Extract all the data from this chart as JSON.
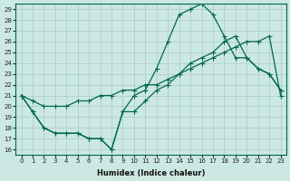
{
  "xlabel": "Humidex (Indice chaleur)",
  "background_color": "#cce8e2",
  "grid_color": "#a8ccbf",
  "line_color": "#006655",
  "xlim": [
    -0.5,
    23.5
  ],
  "ylim": [
    15.5,
    29.5
  ],
  "xticks": [
    0,
    1,
    2,
    3,
    4,
    5,
    6,
    7,
    8,
    9,
    10,
    11,
    12,
    13,
    14,
    15,
    16,
    17,
    18,
    19,
    20,
    21,
    22,
    23
  ],
  "yticks": [
    16,
    17,
    18,
    19,
    20,
    21,
    22,
    23,
    24,
    25,
    26,
    27,
    28,
    29
  ],
  "line1_x": [
    0,
    1,
    2,
    3,
    4,
    5,
    6,
    7,
    8,
    9,
    10,
    11,
    12,
    13,
    14,
    15,
    16,
    17,
    18,
    19,
    20,
    21,
    22,
    23
  ],
  "line1_y": [
    21.0,
    19.5,
    18.0,
    17.5,
    17.5,
    17.5,
    17.0,
    17.0,
    16.0,
    19.5,
    21.0,
    21.5,
    23.5,
    26.0,
    28.5,
    29.0,
    29.5,
    28.5,
    26.5,
    24.5,
    24.5,
    23.5,
    23.0,
    21.5
  ],
  "line2_x": [
    0,
    1,
    2,
    3,
    4,
    5,
    6,
    7,
    8,
    9,
    10,
    11,
    12,
    13,
    14,
    15,
    16,
    17,
    18,
    19,
    20,
    21,
    22,
    23
  ],
  "line2_y": [
    21.0,
    20.5,
    20.0,
    20.0,
    20.0,
    20.5,
    20.5,
    21.0,
    21.0,
    21.5,
    21.5,
    22.0,
    22.0,
    22.5,
    23.0,
    23.5,
    24.0,
    24.5,
    25.0,
    25.5,
    26.0,
    26.0,
    26.5,
    21.0
  ],
  "line3_x": [
    0,
    1,
    2,
    3,
    4,
    5,
    6,
    7,
    8,
    9,
    10,
    11,
    12,
    13,
    14,
    15,
    16,
    17,
    18,
    19,
    20,
    21,
    22,
    23
  ],
  "line3_y": [
    21.0,
    19.5,
    18.0,
    17.5,
    17.5,
    17.5,
    17.0,
    17.0,
    16.0,
    19.5,
    19.5,
    20.5,
    21.5,
    22.0,
    23.0,
    24.0,
    24.5,
    25.0,
    26.0,
    26.5,
    24.5,
    23.5,
    23.0,
    21.5
  ]
}
